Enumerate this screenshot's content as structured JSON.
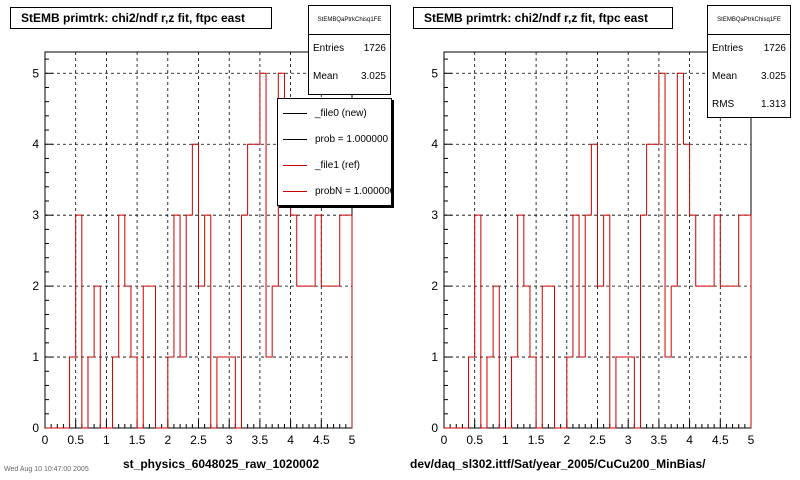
{
  "colors": {
    "new": "#000000",
    "ref": "#cc0000",
    "grid": "#000000"
  },
  "panels": [
    {
      "title": "StEMB primtrk: chi2/ndf r,z fit, ftpc east",
      "stats_name": "StEMBQaPtrkChisq1FE",
      "stats": [
        {
          "label": "Entries",
          "value": "1726"
        },
        {
          "label": "Mean",
          "value": "3.025"
        }
      ],
      "xlabel": "st_physics_6048025_raw_1020002"
    },
    {
      "title": "StEMB primtrk: chi2/ndf r,z fit, ftpc east",
      "stats_name": "StEMBQaPtrkChisq1FE",
      "stats": [
        {
          "label": "Entries",
          "value": "1726"
        },
        {
          "label": "Mean",
          "value": "3.025"
        },
        {
          "label": "RMS",
          "value": "1.313"
        }
      ],
      "xlabel": "dev/daq_sl302.ittf/Sat/year_2005/CuCu200_MinBias/"
    }
  ],
  "legend": {
    "entries": [
      {
        "label": "_file0 (new)",
        "color": "#000000"
      },
      {
        "label": "prob = 1.000000",
        "color": "#000000"
      },
      {
        "label": "_file1 (ref)",
        "color": "#cc0000"
      },
      {
        "label": "probN = 1.000000",
        "color": "#cc0000"
      }
    ]
  },
  "timestamp": "Wed Aug 10 10:47:00 2005",
  "chart_data": {
    "type": "histogram",
    "x_range": [
      0,
      5
    ],
    "y_range": [
      0,
      5.3
    ],
    "bin_width": 0.1,
    "x_ticks": [
      "0",
      "0.5",
      "1",
      "1.5",
      "2",
      "2.5",
      "3",
      "3.5",
      "4",
      "4.5",
      "5"
    ],
    "y_ticks": [
      "0",
      "1",
      "2",
      "3",
      "4",
      "5"
    ],
    "grid": true,
    "bin_edges_start": 0,
    "values": [
      0,
      0,
      0,
      0,
      1,
      3,
      0,
      1,
      2,
      0,
      0,
      1,
      3,
      2,
      1,
      0,
      2,
      2,
      0,
      0,
      1,
      3,
      1,
      3,
      4,
      2,
      3,
      0,
      1,
      1,
      1,
      0,
      3,
      4,
      4,
      5,
      1,
      2,
      5,
      4,
      3,
      2,
      2,
      2,
      3,
      2,
      2,
      2,
      3,
      3
    ],
    "series": [
      {
        "name": "_file0 (new)",
        "color": "#000000"
      },
      {
        "name": "_file1 (ref)",
        "color": "#cc0000"
      }
    ]
  }
}
